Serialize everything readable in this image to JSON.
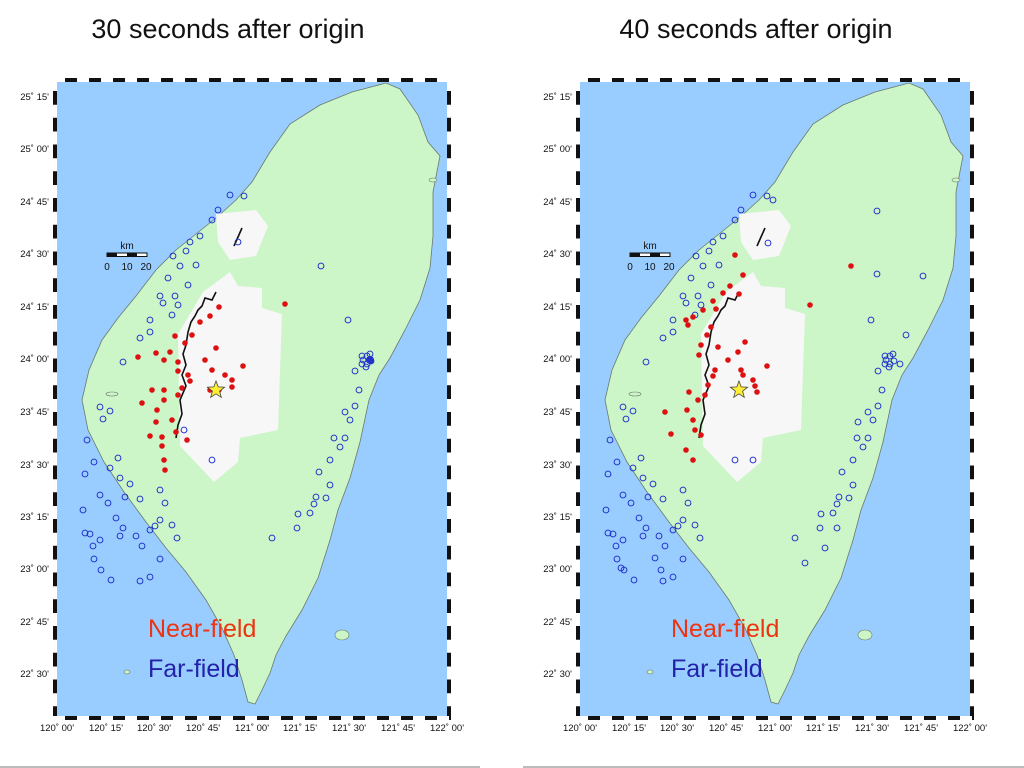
{
  "panels": [
    {
      "title": "30 seconds after origin"
    },
    {
      "title": "40 seconds after origin"
    }
  ],
  "lat_ticks": [
    "25˚ 15'",
    "25˚ 00'",
    "24˚ 45'",
    "24˚ 30'",
    "24˚ 15'",
    "24˚ 00'",
    "23˚ 45'",
    "23˚ 30'",
    "23˚ 15'",
    "23˚ 00'",
    "22˚ 45'",
    "22˚ 30'"
  ],
  "lon_ticks": [
    "120˚ 00'",
    "120˚ 15'",
    "120˚ 30'",
    "120˚ 45'",
    "121˚ 00'",
    "121˚ 15'",
    "121˚ 30'",
    "121˚ 45'",
    "122˚ 00'"
  ],
  "scale": {
    "unit": "km",
    "labels": [
      "0",
      "10",
      "20"
    ]
  },
  "legend": {
    "near": "Near-field",
    "far": "Far-field"
  },
  "colors": {
    "sea": "#99ccff",
    "land": "#ccf5c8",
    "zone": "#f7f7f7",
    "near": "#dd1111",
    "far": "#2233cc",
    "epicenter": "#ffee33",
    "legend_near": "#ee3311",
    "legend_far": "#2222aa"
  }
}
